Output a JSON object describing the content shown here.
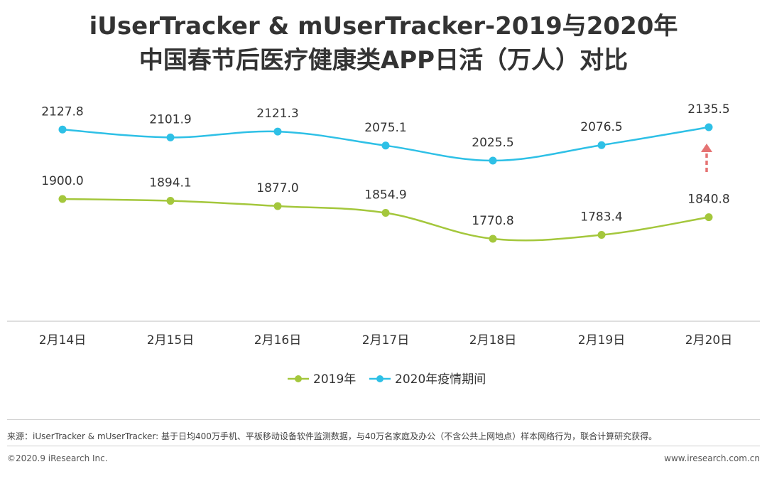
{
  "chart_data": {
    "type": "line",
    "title_line1": "iUserTracker & mUserTracker-2019与2020年",
    "title_line2": "中国春节后医疗健康类APP日活（万人）对比",
    "categories": [
      "2月14日",
      "2月15日",
      "2月16日",
      "2月17日",
      "2月18日",
      "2月19日",
      "2月20日"
    ],
    "series": [
      {
        "name": "2019年",
        "color": "#a4c73c",
        "values": [
          1900.0,
          1894.1,
          1877.0,
          1854.9,
          1770.8,
          1783.4,
          1840.8
        ],
        "labels": [
          "1900.0",
          "1894.1",
          "1877.0",
          "1854.9",
          "1770.8",
          "1783.4",
          "1840.8"
        ]
      },
      {
        "name": "2020年疫情期间",
        "color": "#2ec0e6",
        "values": [
          2127.8,
          2101.9,
          2121.3,
          2075.1,
          2025.5,
          2076.5,
          2135.5
        ],
        "labels": [
          "2127.8",
          "2101.9",
          "2121.3",
          "2075.1",
          "2025.5",
          "2076.5",
          "2135.5"
        ]
      }
    ],
    "arrow_color": "#e57373",
    "xlabel": "",
    "ylabel": "",
    "legend": "bottom"
  },
  "footer": {
    "source": "来源：iUserTracker & mUserTracker: 基于日均400万手机、平板移动设备软件监测数据，与40万名家庭及办公（不含公共上网地点）样本网络行为，联合计算研究获得。",
    "copyright": "©2020.9 iResearch Inc.",
    "site": "www.iresearch.com.cn"
  }
}
